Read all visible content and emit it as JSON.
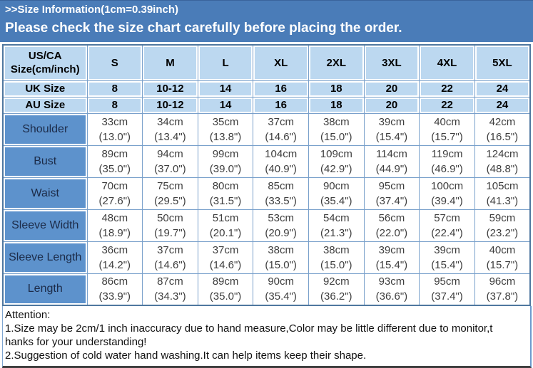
{
  "banner": {
    "line1": ">>Size Information(1cm=0.39inch)",
    "line2": "Please check the size chart carefully before placing the order."
  },
  "table": {
    "corner_label": [
      "US/CA",
      "Size(cm/inch)"
    ],
    "sizes": [
      "S",
      "M",
      "L",
      "XL",
      "2XL",
      "3XL",
      "4XL",
      "5XL"
    ],
    "region_rows": [
      {
        "label": "UK Size",
        "values": [
          "8",
          "10-12",
          "14",
          "16",
          "18",
          "20",
          "22",
          "24"
        ]
      },
      {
        "label": "AU Size",
        "values": [
          "8",
          "10-12",
          "14",
          "16",
          "18",
          "20",
          "22",
          "24"
        ]
      }
    ],
    "measurements": [
      {
        "label": "Shoulder",
        "cm": [
          "33cm",
          "34cm",
          "35cm",
          "37cm",
          "38cm",
          "39cm",
          "40cm",
          "42cm"
        ],
        "inch": [
          "(13.0\")",
          "(13.4\")",
          "(13.8\")",
          "(14.6\")",
          "(15.0\")",
          "(15.4\")",
          "(15.7\")",
          "(16.5\")"
        ]
      },
      {
        "label": "Bust",
        "cm": [
          "89cm",
          "94cm",
          "99cm",
          "104cm",
          "109cm",
          "114cm",
          "119cm",
          "124cm"
        ],
        "inch": [
          "(35.0\")",
          "(37.0\")",
          "(39.0\")",
          "(40.9\")",
          "(42.9\")",
          "(44.9\")",
          "(46.9\")",
          "(48.8\")"
        ]
      },
      {
        "label": "Waist",
        "cm": [
          "70cm",
          "75cm",
          "80cm",
          "85cm",
          "90cm",
          "95cm",
          "100cm",
          "105cm"
        ],
        "inch": [
          "(27.6\")",
          "(29.5\")",
          "(31.5\")",
          "(33.5\")",
          "(35.4\")",
          "(37.4\")",
          "(39.4\")",
          "(41.3\")"
        ]
      },
      {
        "label": "Sleeve Width",
        "cm": [
          "48cm",
          "50cm",
          "51cm",
          "53cm",
          "54cm",
          "56cm",
          "57cm",
          "59cm"
        ],
        "inch": [
          "(18.9\")",
          "(19.7\")",
          "(20.1\")",
          "(20.9\")",
          "(21.3\")",
          "(22.0\")",
          "(22.4\")",
          "(23.2\")"
        ]
      },
      {
        "label": "Sleeve Length",
        "cm": [
          "36cm",
          "37cm",
          "37cm",
          "38cm",
          "38cm",
          "39cm",
          "39cm",
          "40cm"
        ],
        "inch": [
          "(14.2\")",
          "(14.6\")",
          "(14.6\")",
          "(15.0\")",
          "(15.0\")",
          "(15.4\")",
          "(15.4\")",
          "(15.7\")"
        ]
      },
      {
        "label": "Length",
        "cm": [
          "86cm",
          "87cm",
          "89cm",
          "90cm",
          "92cm",
          "93cm",
          "95cm",
          "96cm"
        ],
        "inch": [
          "(33.9\")",
          "(34.3\")",
          "(35.0\")",
          "(35.4\")",
          "(36.2\")",
          "(36.6\")",
          "(37.4\")",
          "(37.8\")"
        ]
      }
    ]
  },
  "attention": {
    "title": "Attention:",
    "lines": [
      "1.Size may be 2cm/1 inch inaccuracy due to hand measure,Color may be little different due to monitor,t",
      "hanks for your understanding!",
      "2.Suggestion of cold water hand washing.It can help items keep their shape."
    ]
  },
  "colors": {
    "banner_blue": "#4a7cb8",
    "header_cell_blue": "#bcd8f0",
    "label_cell_blue": "#5d92cc",
    "grid_border_blue": "#79a0cb",
    "outer_border_blue": "#4f779f"
  }
}
